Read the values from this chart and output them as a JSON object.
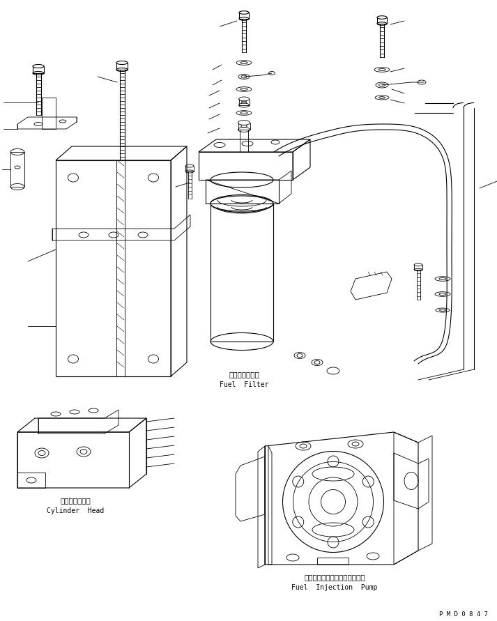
{
  "bg_color": "#ffffff",
  "line_color": "#000000",
  "fig_width": 7.13,
  "fig_height": 8.91,
  "dpi": 100,
  "label_fuel_filter_jp": "フェルフィルタ",
  "label_fuel_filter_en": "Fuel  Filter",
  "label_cylinder_head_jp": "シリンダヘッド",
  "label_cylinder_head_en": "Cylinder  Head",
  "label_fuel_injection_jp": "フェルインジェクションポンプ",
  "label_fuel_injection_en": "Fuel  Injection  Pump",
  "label_pmd": "P M D 0 8 4 7",
  "font_size_label": 7.0,
  "font_size_pmd": 6.5
}
